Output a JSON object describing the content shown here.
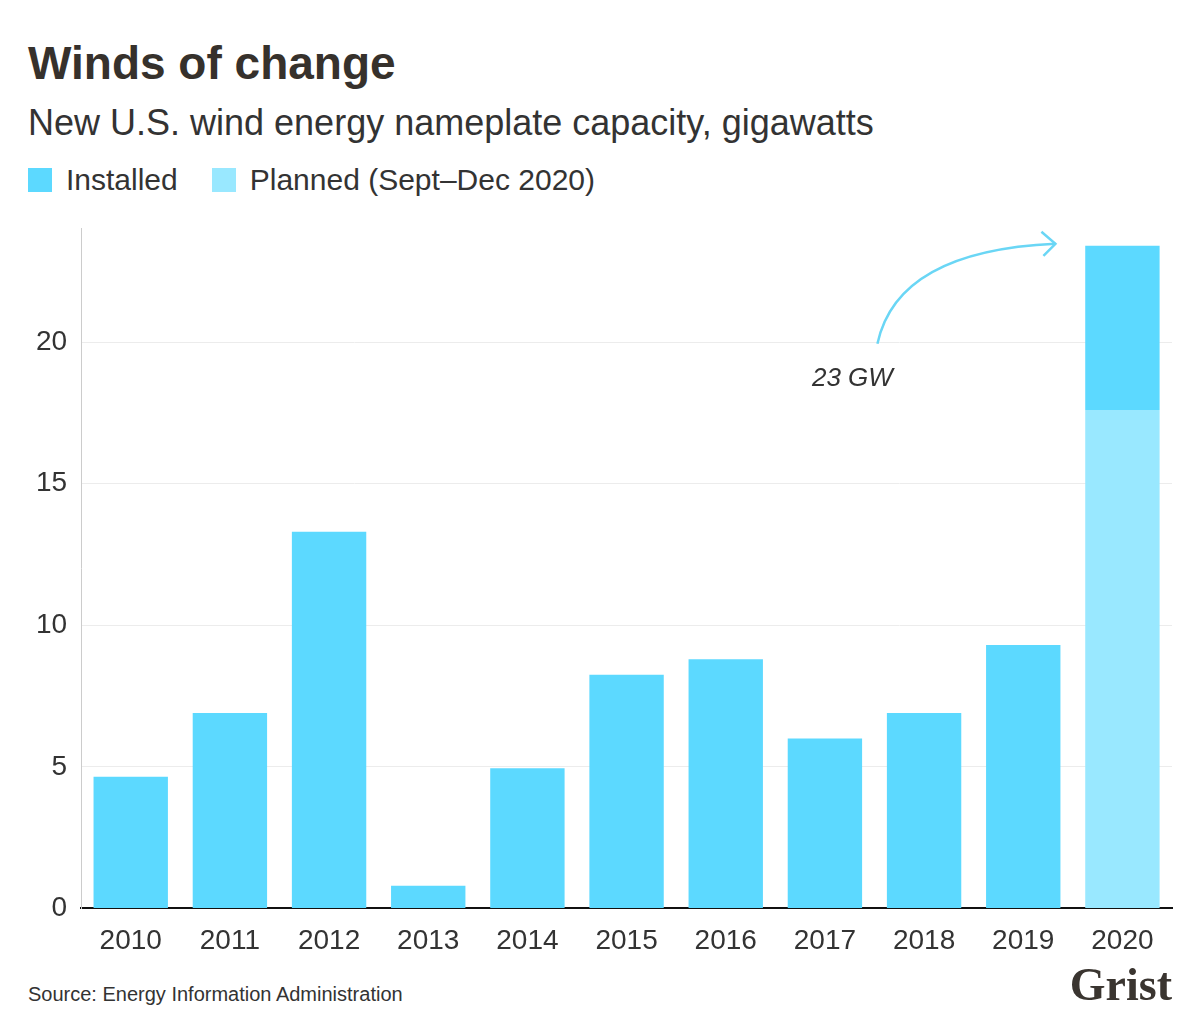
{
  "chart_data": {
    "type": "bar",
    "title": "Winds of change",
    "subtitle": "New U.S. wind energy nameplate capacity, gigawatts",
    "categories": [
      "2010",
      "2011",
      "2012",
      "2013",
      "2014",
      "2015",
      "2016",
      "2017",
      "2018",
      "2019",
      "2020"
    ],
    "series": [
      {
        "name": "Installed",
        "color": "#5cd9ff",
        "values": [
          4.65,
          6.9,
          13.3,
          0.8,
          4.95,
          8.25,
          8.8,
          6.0,
          6.9,
          9.3,
          5.8
        ]
      },
      {
        "name": "Planned (Sept–Dec 2020)",
        "color": "#99e8ff",
        "values": [
          null,
          null,
          null,
          null,
          null,
          null,
          null,
          null,
          null,
          null,
          17.6
        ]
      }
    ],
    "stacked": true,
    "ylim": [
      0,
      24
    ],
    "yticks": [
      0,
      5,
      10,
      15,
      20
    ],
    "grid": true,
    "legend": "top-left",
    "annotation": "23 GW",
    "source": "Source: Energy Information Administration",
    "credit": "Grist"
  }
}
